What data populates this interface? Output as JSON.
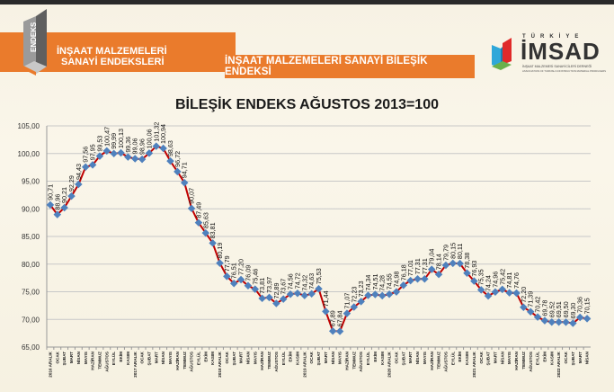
{
  "header": {
    "left_logo_text": "ENDEKS",
    "left_title_line1": "İNŞAAT MALZEMELERİ",
    "left_title_line2": "SANAYİ ENDEKSLERİ",
    "banner_title": "İNŞAAT MALZEMELERİ SANAYİ BİLEŞİK ENDEKSİ",
    "right_logo_top": "TÜRKİYE",
    "right_logo_main": "İMSAD",
    "right_logo_sub1": "İNŞAAT MALZEMESİ SANAYİCİLERİ DERNEĞİ",
    "right_logo_sub2": "ASSOCIATION OF TURKISH CONSTRUCTION MATERIAL PRODUCERS"
  },
  "colors": {
    "orange": "#ea7b2c",
    "line": "#c00000",
    "marker": "#4f81bd",
    "grid": "#c8c8c8"
  },
  "chart_data": {
    "type": "line",
    "title": "BİLEŞİK ENDEKS AĞUSTOS 2013=100",
    "xlabel": "",
    "ylabel": "",
    "ylim": [
      65,
      105
    ],
    "yticks": [
      "65,00",
      "70,00",
      "75,00",
      "80,00",
      "85,00",
      "90,00",
      "95,00",
      "100,00",
      "105,00"
    ],
    "grid": true,
    "legend": null,
    "categories": [
      "2016 ARALIK",
      "OCAK",
      "ŞUBAT",
      "MART",
      "NİSAN",
      "MAYIS",
      "HAZİRAN",
      "TEMMUZ",
      "AĞUSTOS",
      "EYLÜL",
      "EKİM",
      "KASIM",
      "2017 ARALIK",
      "OCAK",
      "ŞUBAT",
      "MART",
      "NİSAN",
      "MAYIS",
      "HAZİRAN",
      "TEMMUZ",
      "AĞUSTOS",
      "EYLÜL",
      "EKİM",
      "KASIM",
      "2018 ARALIK",
      "OCAK",
      "ŞUBAT",
      "MART",
      "NİSAN",
      "MAYIS",
      "HAZİRAN",
      "TEMMUZ",
      "AĞUSTOS",
      "EYLÜL",
      "EKİM",
      "KASIM",
      "2019 ARALIK",
      "OCAK",
      "ŞUBAT",
      "MART",
      "NİSAN",
      "MAYIS",
      "HAZİRAN",
      "TEMMUZ",
      "AĞUSTOS",
      "EYLÜL",
      "EKİM",
      "KASIM",
      "2020 ARALIK",
      "OCAK",
      "ŞUBAT",
      "MART",
      "NİSAN",
      "MAYIS",
      "HAZİRAN",
      "TEMMUZ",
      "AĞUSTOS",
      "EYLÜL",
      "EKİM",
      "KASIM",
      "2021 ARALIK",
      "OCAK",
      "ŞUBAT",
      "MART",
      "NİSAN",
      "MAYIS",
      "HAZİRAN",
      "TEMMUZ",
      "AĞUSTOS",
      "EYLÜL",
      "EKİM",
      "KASIM",
      "2022 ARALIK",
      "OCAK",
      "ŞUBAT",
      "MART",
      "NİSAN"
    ],
    "values": [
      90.71,
      88.96,
      90.21,
      92.29,
      94.43,
      97.56,
      97.95,
      99.53,
      100.47,
      99.99,
      100.13,
      99.36,
      99.06,
      98.96,
      100.06,
      101.32,
      100.94,
      98.63,
      96.72,
      94.71,
      90.07,
      87.49,
      85.63,
      83.81,
      80.19,
      77.79,
      76.51,
      77.2,
      76.09,
      75.46,
      73.81,
      73.97,
      72.89,
      73.67,
      74.56,
      74.72,
      74.32,
      74.63,
      75.53,
      71.44,
      67.89,
      67.84,
      71.07,
      72.23,
      73.23,
      74.34,
      74.51,
      74.28,
      74.55,
      74.98,
      76.18,
      77.01,
      77.31,
      77.31,
      79.04,
      78.14,
      79.79,
      80.15,
      80.11,
      78.38,
      76.93,
      75.35,
      74.24,
      74.96,
      75.42,
      74.81,
      74.76,
      72.2,
      71.39,
      70.42,
      69.78,
      69.52,
      69.51,
      69.5,
      69.3,
      70.36,
      70.15
    ],
    "labels": [
      "90,71",
      "88,96",
      "90,21",
      "92,29",
      "94,43",
      "97,56",
      "97,95",
      "99,53",
      "100,47",
      "99,99",
      "100,13",
      "99,36",
      "99,06",
      "98,96",
      "100,06",
      "101,32",
      "100,94",
      "98,63",
      "96,72",
      "94,71",
      "90,07",
      "87,49",
      "85,63",
      "83,81",
      "80,19",
      "77,79",
      "76,51",
      "77,20",
      "76,09",
      "75,46",
      "73,81",
      "73,97",
      "72,89",
      "73,67",
      "74,56",
      "74,72",
      "74,32",
      "74,63",
      "75,53",
      "71,44",
      "67,89",
      "67,84",
      "71,07",
      "72,23",
      "73,23",
      "74,34",
      "74,51",
      "74,28",
      "74,55",
      "74,98",
      "76,18",
      "77,01",
      "77,31",
      "77,31",
      "79,04",
      "78,14",
      "79,79",
      "80,15",
      "80,11",
      "78,38",
      "76,93",
      "75,35",
      "74,24",
      "74,96",
      "75,42",
      "74,81",
      "74,76",
      "72,20",
      "71,39",
      "70,42",
      "69,78",
      "69,52",
      "69,51",
      "69,50",
      "69,30",
      "70,36",
      "70,15"
    ]
  }
}
